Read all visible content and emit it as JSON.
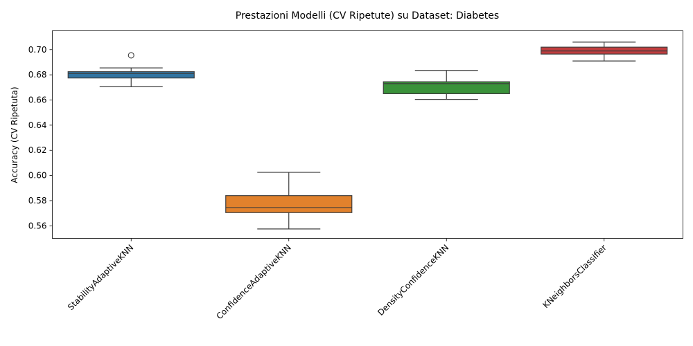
{
  "chart_data": {
    "type": "box",
    "title": "Prestazioni Modelli (CV Ripetute) su Dataset: Diabetes",
    "xlabel": "",
    "ylabel": "Accuracy (CV Ripetuta)",
    "ylim": [
      0.55,
      0.715
    ],
    "yticks": [
      0.56,
      0.58,
      0.6,
      0.62,
      0.64,
      0.66,
      0.68,
      0.7
    ],
    "ytick_labels": [
      "0.56",
      "0.58",
      "0.60",
      "0.62",
      "0.64",
      "0.66",
      "0.68",
      "0.70"
    ],
    "grid": false,
    "categories": [
      "StabilityAdaptiveKNN",
      "ConfidenceAdaptiveKNN",
      "DensityConfidenceKNN",
      "KNeighborsClassifier"
    ],
    "series": [
      {
        "category": "StabilityAdaptiveKNN",
        "color": "#3274a1",
        "whisker_low": 0.6705,
        "q1": 0.6775,
        "median": 0.681,
        "q3": 0.6825,
        "whisker_high": 0.6855,
        "outliers": [
          0.6955
        ]
      },
      {
        "category": "ConfidenceAdaptiveKNN",
        "color": "#e1812c",
        "whisker_low": 0.5575,
        "q1": 0.5705,
        "median": 0.5745,
        "q3": 0.584,
        "whisker_high": 0.6025,
        "outliers": []
      },
      {
        "category": "DensityConfidenceKNN",
        "color": "#3a923a",
        "whisker_low": 0.6605,
        "q1": 0.665,
        "median": 0.673,
        "q3": 0.6745,
        "whisker_high": 0.6835,
        "outliers": []
      },
      {
        "category": "KNeighborsClassifier",
        "color": "#c03d3e",
        "whisker_low": 0.691,
        "q1": 0.6965,
        "median": 0.699,
        "q3": 0.702,
        "whisker_high": 0.706,
        "outliers": []
      }
    ]
  }
}
